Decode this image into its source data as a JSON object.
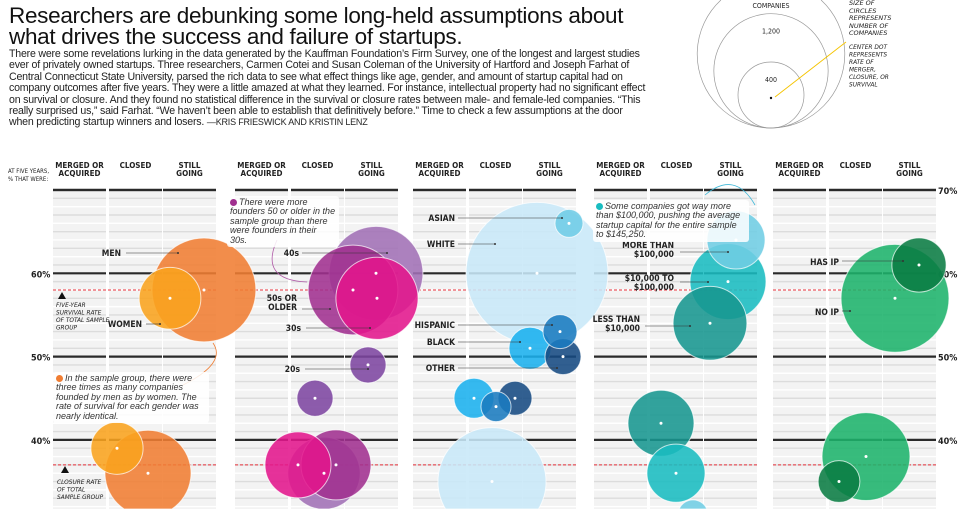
{
  "headline": "Researchers are debunking some long-held assumptions about what drives the success and failure of startups.",
  "intro": "There were some revelations lurking in the data generated by the Kauffman Foundation’s Firm Survey, one of the longest and largest studies ever of privately owned startups. Three researchers, Carmen Cotei and Susan Coleman of the University of Hartford and Joseph Farhat of Central Connecticut State University, parsed the rich data to see what effect things like age, gender, and amount of startup capital had on company outcomes after five years. They were a little amazed at what they learned. For instance, intellectual property had no significant effect on survival or closure. And they found no statistical difference in the survival or closure rates between male- and female-led companies. “This really surprised us,” said Farhat. “We haven’t been able to establish that definitively before.” Time to check a few assumptions at the door when predicting startup winners and losers.",
  "byline": "—KRIS FRIESWICK AND KRISTIN LENZ",
  "legend": {
    "sizes": [
      {
        "label": "COMPANIES",
        "companies": 2000
      },
      {
        "label": "1,200",
        "companies": 1200
      },
      {
        "label": "400",
        "companies": 400
      }
    ],
    "size_note": "SIZE OF CIRCLES REPRESENTS NUMBER OF COMPANIES",
    "dot_note": "CENTER DOT REPRESENTS RATE OF MERGER, CLOSURE, OR SURVIVAL"
  },
  "axis_caption": "AT FIVE YEARS, % THAT WERE:",
  "reference_labels": {
    "survival": "FIVE-YEAR SURVIVAL RATE OF TOTAL SAMPLE GROUP",
    "closure": "CLOSURE RATE OF TOTAL SAMPLE GROUP"
  },
  "notes": [
    {
      "text": "In the sample group, there were three times as many companies founded by men as by women. The rate of survival for each gender was nearly identical.",
      "color": "#f07d32"
    },
    {
      "text": "There were more founders 50 or older in the sample group than there were founders in their 30s.",
      "color": "#a0308f"
    },
    {
      "text": "Some companies got way more than $100,000, pushing the average startup capital for the entire sample to $145,250.",
      "color": "#19bcc0"
    }
  ],
  "chart_data": {
    "type": "scatter",
    "subtype": "bubble",
    "columns": [
      "MERGED OR ACQUIRED",
      "CLOSED",
      "STILL GOING"
    ],
    "ylim": [
      30,
      70
    ],
    "yticks": [
      40,
      50,
      60,
      70
    ],
    "ytick_labels": [
      "40%",
      "50%",
      "60%",
      "70%"
    ],
    "reference_lines": {
      "survival_rate": 58,
      "closure_rate": 37
    },
    "grid": true,
    "panels": [
      {
        "series": [
          {
            "name": "MEN",
            "color": "#f07d32",
            "still_going": {
              "rate": 58,
              "companies": 990
            },
            "closed": {
              "rate": 36,
              "companies": 680
            }
          },
          {
            "name": "WOMEN",
            "color": "#f9a31e",
            "still_going": {
              "rate": 57,
              "companies": 350
            },
            "closed": {
              "rate": 39,
              "companies": 250
            }
          }
        ]
      },
      {
        "series": [
          {
            "name": "40s",
            "color": "#a070b5",
            "still_going": {
              "rate": 60,
              "companies": 810
            },
            "closed": {
              "rate": 36,
              "companies": 480
            }
          },
          {
            "name": "50s OR OLDER",
            "color": "#a0308f",
            "still_going": {
              "rate": 58,
              "companies": 740
            },
            "closed": {
              "rate": 37,
              "companies": 450
            }
          },
          {
            "name": "30s",
            "color": "#e3168c",
            "still_going": {
              "rate": 57,
              "companies": 620
            },
            "closed": {
              "rate": 37,
              "companies": 400
            }
          },
          {
            "name": "20s",
            "color": "#7d45a0",
            "still_going": {
              "rate": 49,
              "companies": 120
            },
            "closed": {
              "rate": 45,
              "companies": 120
            }
          }
        ]
      },
      {
        "series": [
          {
            "name": "ASIAN",
            "color": "#6fcce6",
            "still_going": {
              "rate": 66,
              "companies": 72
            }
          },
          {
            "name": "WHITE",
            "color": "#c8e8f8",
            "still_going": {
              "rate": 60,
              "companies": 1850
            },
            "closed": {
              "rate": 35,
              "companies": 1070
            }
          },
          {
            "name": "HISPANIC",
            "color": "#1a7bbf",
            "still_going": {
              "rate": 53,
              "companies": 106
            },
            "closed": {
              "rate": 44,
              "companies": 83
            }
          },
          {
            "name": "BLACK",
            "color": "#1ab0ee",
            "still_going": {
              "rate": 51,
              "companies": 162
            },
            "closed": {
              "rate": 45,
              "companies": 147
            }
          },
          {
            "name": "OTHER",
            "color": "#164a82",
            "still_going": {
              "rate": 50,
              "companies": 119
            },
            "closed": {
              "rate": 45,
              "companies": 106
            }
          }
        ]
      },
      {
        "series": [
          {
            "name": "MORE THAN $100,000",
            "color": "#6fcde4",
            "still_going": {
              "rate": 64,
              "companies": 310
            },
            "closed": {
              "rate": 31,
              "companies": 83
            }
          },
          {
            "name": "$10,000 TO $100,000",
            "color": "#19bcc0",
            "still_going": {
              "rate": 59,
              "companies": 530
            },
            "closed": {
              "rate": 36,
              "companies": 310
            }
          },
          {
            "name": "LESS THAN $10,000",
            "color": "#17968f",
            "still_going": {
              "rate": 54,
              "companies": 500
            },
            "closed": {
              "rate": 42,
              "companies": 400
            }
          }
        ]
      },
      {
        "series": [
          {
            "name": "HAS IP",
            "color": "#0a7c43",
            "still_going": {
              "rate": 61,
              "companies": 270
            },
            "closed": {
              "rate": 35,
              "companies": 160
            }
          },
          {
            "name": "NO IP",
            "color": "#1db36b",
            "still_going": {
              "rate": 57,
              "companies": 1070
            },
            "closed": {
              "rate": 38,
              "companies": 710
            }
          }
        ]
      }
    ]
  }
}
